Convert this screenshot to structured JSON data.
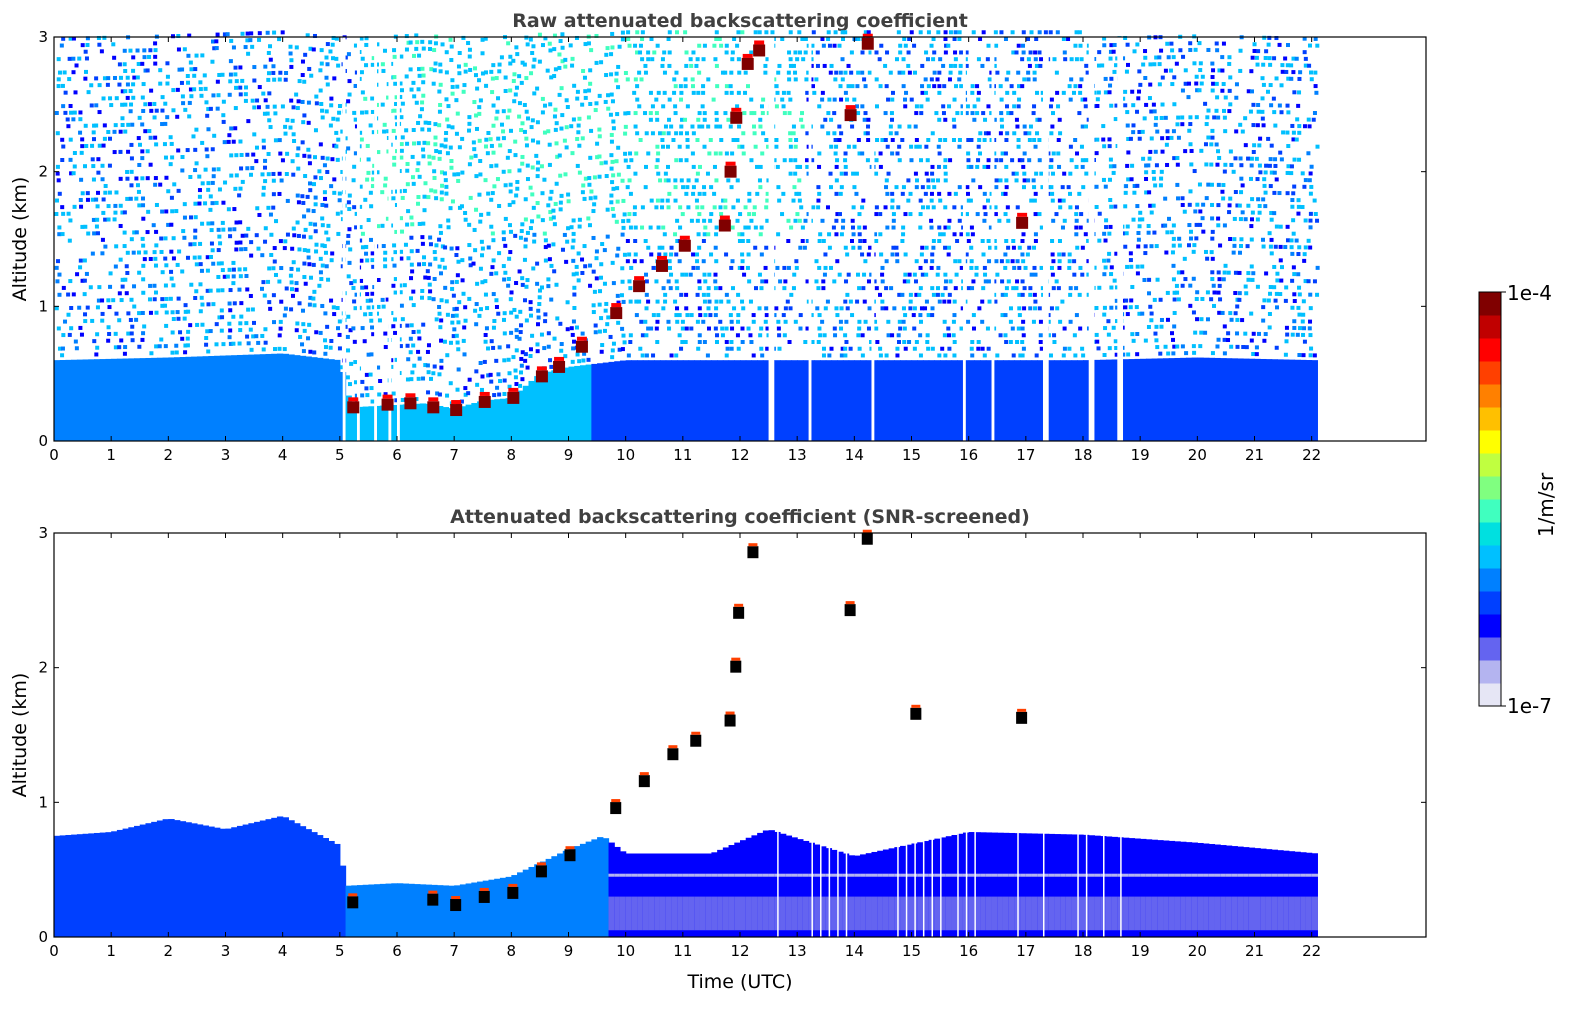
{
  "chart_data": [
    {
      "type": "heatmap",
      "title": "Raw attenuated backscattering coefficient",
      "xlabel": "",
      "ylabel": "Altitude (km)",
      "xlim": [
        0,
        24
      ],
      "ylim": [
        0,
        3
      ],
      "x_ticks": [
        "0",
        "1",
        "2",
        "3",
        "4",
        "5",
        "6",
        "7",
        "8",
        "9",
        "10",
        "11",
        "12",
        "13",
        "14",
        "15",
        "16",
        "17",
        "18",
        "19",
        "20",
        "21",
        "22"
      ],
      "y_ticks": [
        "0",
        "1",
        "2",
        "3"
      ],
      "data_time_range": [
        0,
        22.1
      ],
      "missing_data_gaps_utc": [
        [
          5.05,
          5.1
        ],
        [
          5.3,
          5.35
        ],
        [
          5.6,
          5.65
        ],
        [
          5.85,
          5.9
        ],
        [
          6.0,
          6.05
        ],
        [
          12.5,
          12.6
        ],
        [
          13.2,
          13.25
        ],
        [
          14.3,
          14.35
        ],
        [
          15.9,
          15.95
        ],
        [
          16.4,
          16.45
        ],
        [
          17.3,
          17.4
        ],
        [
          18.1,
          18.2
        ],
        [
          18.6,
          18.7
        ]
      ],
      "boundary_layer_top_km": [
        {
          "time": 0.0,
          "value": 0.6
        },
        {
          "time": 2.0,
          "value": 0.62
        },
        {
          "time": 4.0,
          "value": 0.65
        },
        {
          "time": 5.0,
          "value": 0.6
        },
        {
          "time": 5.2,
          "value": 0.25
        },
        {
          "time": 6.5,
          "value": 0.28
        },
        {
          "time": 7.0,
          "value": 0.24
        },
        {
          "time": 7.5,
          "value": 0.3
        },
        {
          "time": 8.0,
          "value": 0.32
        },
        {
          "time": 8.5,
          "value": 0.5
        },
        {
          "time": 9.0,
          "value": 0.55
        },
        {
          "time": 10.0,
          "value": 0.6
        },
        {
          "time": 12.0,
          "value": 0.6
        },
        {
          "time": 14.0,
          "value": 0.6
        },
        {
          "time": 16.0,
          "value": 0.6
        },
        {
          "time": 18.0,
          "value": 0.6
        },
        {
          "time": 20.0,
          "value": 0.62
        },
        {
          "time": 22.1,
          "value": 0.6
        }
      ],
      "cloud_layers": [
        {
          "time": 5.2,
          "value": 0.25
        },
        {
          "time": 5.8,
          "value": 0.27
        },
        {
          "time": 6.2,
          "value": 0.28
        },
        {
          "time": 6.6,
          "value": 0.25
        },
        {
          "time": 7.0,
          "value": 0.23
        },
        {
          "time": 7.5,
          "value": 0.29
        },
        {
          "time": 8.0,
          "value": 0.32
        },
        {
          "time": 8.5,
          "value": 0.48
        },
        {
          "time": 8.8,
          "value": 0.55
        },
        {
          "time": 9.2,
          "value": 0.7
        },
        {
          "time": 9.8,
          "value": 0.95
        },
        {
          "time": 10.2,
          "value": 1.15
        },
        {
          "time": 10.6,
          "value": 1.3
        },
        {
          "time": 11.0,
          "value": 1.45
        },
        {
          "time": 11.7,
          "value": 1.6
        },
        {
          "time": 11.8,
          "value": 2.0
        },
        {
          "time": 11.9,
          "value": 2.4
        },
        {
          "time": 12.1,
          "value": 2.8
        },
        {
          "time": 12.3,
          "value": 2.9
        },
        {
          "time": 13.9,
          "value": 2.42
        },
        {
          "time": 14.2,
          "value": 2.95
        },
        {
          "time": 16.9,
          "value": 1.62
        }
      ]
    },
    {
      "type": "heatmap",
      "title": "Attenuated backscattering coefficient (SNR-screened)",
      "xlabel": "Time (UTC)",
      "ylabel": "Altitude (km)",
      "xlim": [
        0,
        24
      ],
      "ylim": [
        0,
        3
      ],
      "x_ticks": [
        "0",
        "1",
        "2",
        "3",
        "4",
        "5",
        "6",
        "7",
        "8",
        "9",
        "10",
        "11",
        "12",
        "13",
        "14",
        "15",
        "16",
        "17",
        "18",
        "19",
        "20",
        "21",
        "22"
      ],
      "y_ticks": [
        "0",
        "1",
        "2",
        "3"
      ],
      "data_time_range": [
        0,
        22.1
      ],
      "signal_top_km": [
        {
          "time": 0.0,
          "value": 0.75
        },
        {
          "time": 1.0,
          "value": 0.78
        },
        {
          "time": 2.0,
          "value": 0.88
        },
        {
          "time": 3.0,
          "value": 0.8
        },
        {
          "time": 4.0,
          "value": 0.9
        },
        {
          "time": 5.0,
          "value": 0.68
        },
        {
          "time": 5.1,
          "value": 0.38
        },
        {
          "time": 6.0,
          "value": 0.4
        },
        {
          "time": 7.0,
          "value": 0.38
        },
        {
          "time": 8.0,
          "value": 0.45
        },
        {
          "time": 9.0,
          "value": 0.65
        },
        {
          "time": 9.6,
          "value": 0.75
        },
        {
          "time": 10.0,
          "value": 0.62
        },
        {
          "time": 11.5,
          "value": 0.62
        },
        {
          "time": 12.5,
          "value": 0.8
        },
        {
          "time": 14.0,
          "value": 0.6
        },
        {
          "time": 16.0,
          "value": 0.78
        },
        {
          "time": 18.0,
          "value": 0.76
        },
        {
          "time": 20.0,
          "value": 0.7
        },
        {
          "time": 22.1,
          "value": 0.62
        }
      ],
      "cloud_layers": [
        {
          "time": 5.2,
          "value": 0.25
        },
        {
          "time": 6.6,
          "value": 0.27
        },
        {
          "time": 7.0,
          "value": 0.23
        },
        {
          "time": 7.5,
          "value": 0.29
        },
        {
          "time": 8.0,
          "value": 0.32
        },
        {
          "time": 8.5,
          "value": 0.48
        },
        {
          "time": 9.0,
          "value": 0.6
        },
        {
          "time": 9.8,
          "value": 0.95
        },
        {
          "time": 10.3,
          "value": 1.15
        },
        {
          "time": 10.8,
          "value": 1.35
        },
        {
          "time": 11.2,
          "value": 1.45
        },
        {
          "time": 11.8,
          "value": 1.6
        },
        {
          "time": 11.9,
          "value": 2.0
        },
        {
          "time": 11.95,
          "value": 2.4
        },
        {
          "time": 12.2,
          "value": 2.85
        },
        {
          "time": 13.9,
          "value": 2.42
        },
        {
          "time": 14.2,
          "value": 2.95
        },
        {
          "time": 15.05,
          "value": 1.65
        },
        {
          "time": 16.9,
          "value": 1.62
        }
      ]
    }
  ],
  "colorbar": {
    "label": "1/m/sr",
    "max_label": "1e-4",
    "min_label": "1e-7",
    "scale": "log",
    "colormap": [
      "#e6e6f5",
      "#b4b4f0",
      "#6464f0",
      "#0000ff",
      "#0040ff",
      "#0080ff",
      "#00c0ff",
      "#00e0e0",
      "#40ffbf",
      "#80ff80",
      "#c0ff40",
      "#ffff00",
      "#ffc000",
      "#ff8000",
      "#ff4000",
      "#ff0000",
      "#c00000",
      "#800000"
    ]
  }
}
